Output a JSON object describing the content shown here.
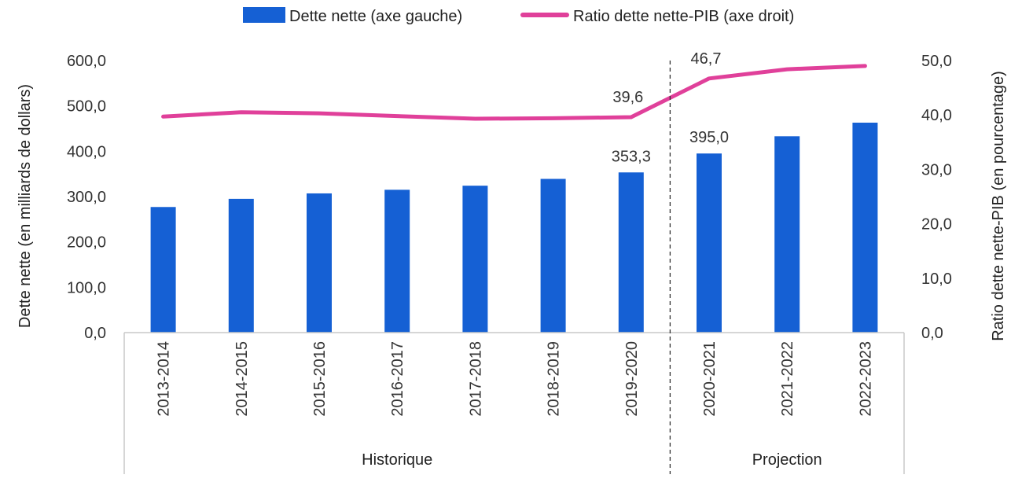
{
  "chart_data": {
    "type": "bar",
    "categories": [
      "2013-2014",
      "2014-2015",
      "2015-2016",
      "2016-2017",
      "2017-2018",
      "2018-2019",
      "2019-2020",
      "2020-2021",
      "2021-2022",
      "2022-2023"
    ],
    "series": [
      {
        "name": "Dette nette (axe gauche)",
        "type": "bar",
        "axis": "left",
        "color": "#1560d4",
        "values": [
          277,
          295,
          307,
          315,
          324,
          339,
          353.3,
          395.0,
          433,
          463
        ]
      },
      {
        "name": "Ratio dette nette-PIB (axe droit)",
        "type": "line",
        "axis": "right",
        "color": "#e0409a",
        "values": [
          39.7,
          40.5,
          40.3,
          39.8,
          39.3,
          39.4,
          39.6,
          46.7,
          48.4,
          49.0
        ]
      }
    ],
    "data_labels": [
      {
        "series": 0,
        "index": 6,
        "text": "353,3"
      },
      {
        "series": 0,
        "index": 7,
        "text": "395,0"
      },
      {
        "series": 1,
        "index": 6,
        "text": "39,6"
      },
      {
        "series": 1,
        "index": 7,
        "text": "46,7"
      }
    ],
    "ylabel_left": "Dette nette (en milliards de dollars)",
    "ylabel_right": "Ratio dette nette-PIB (en pourcentage)",
    "ylim_left": [
      0,
      600
    ],
    "ylim_right": [
      0,
      50
    ],
    "yticks_left": [
      "0,0",
      "100,0",
      "200,0",
      "300,0",
      "400,0",
      "500,0",
      "600,0"
    ],
    "yticks_right": [
      "0,0",
      "10,0",
      "20,0",
      "30,0",
      "40,0",
      "50,0"
    ],
    "groups": [
      {
        "label": "Historique",
        "from": 0,
        "to": 6
      },
      {
        "label": "Projection",
        "from": 7,
        "to": 9
      }
    ],
    "divider_after_index": 6,
    "legend_position": "top-center",
    "grid": false
  }
}
